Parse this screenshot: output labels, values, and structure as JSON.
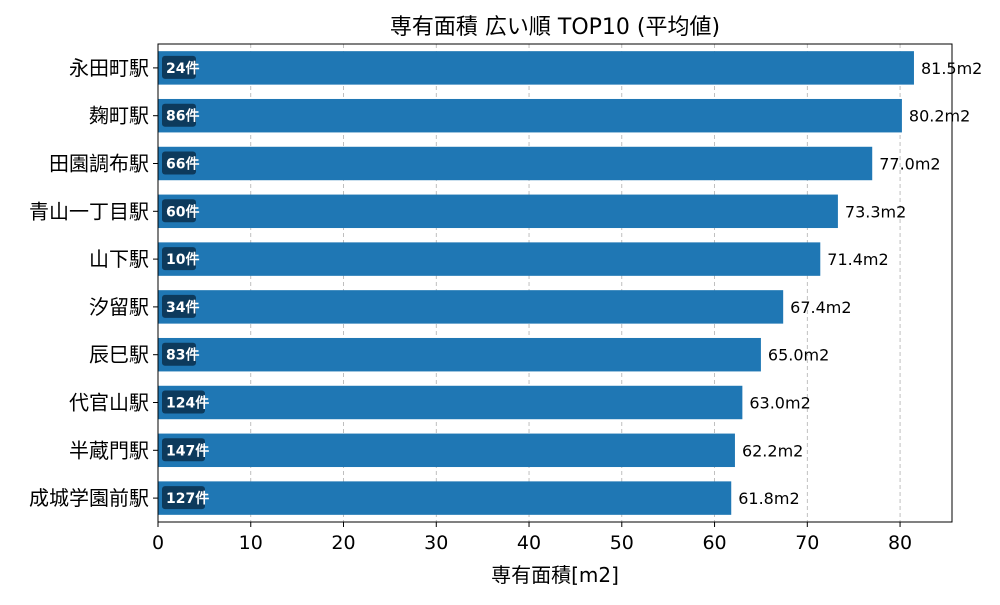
{
  "chart_data": {
    "type": "bar",
    "orientation": "horizontal",
    "title": "専有面積 広い順 TOP10 (平均値)",
    "xlabel": "専有面積[m2]",
    "ylabel": "",
    "xlim": [
      0,
      85.6
    ],
    "xticks": [
      0,
      10,
      20,
      30,
      40,
      50,
      60,
      70,
      80
    ],
    "grid": "x-axis dashed",
    "categories": [
      "永田町駅",
      "麹町駅",
      "田園調布駅",
      "青山一丁目駅",
      "山下駅",
      "汐留駅",
      "辰巳駅",
      "代官山駅",
      "半蔵門駅",
      "成城学園前駅"
    ],
    "values": [
      81.5,
      80.2,
      77.0,
      73.3,
      71.4,
      67.4,
      65.0,
      63.0,
      62.2,
      61.8
    ],
    "value_labels": [
      "81.5m2",
      "80.2m2",
      "77.0m2",
      "73.3m2",
      "71.4m2",
      "67.4m2",
      "65.0m2",
      "63.0m2",
      "62.2m2",
      "61.8m2"
    ],
    "count_labels": [
      "24件",
      "86件",
      "66件",
      "60件",
      "10件",
      "34件",
      "83件",
      "124件",
      "147件",
      "127件"
    ],
    "colors": {
      "bar": "#1f77b4",
      "count_badge": "#0d3a5c"
    }
  }
}
